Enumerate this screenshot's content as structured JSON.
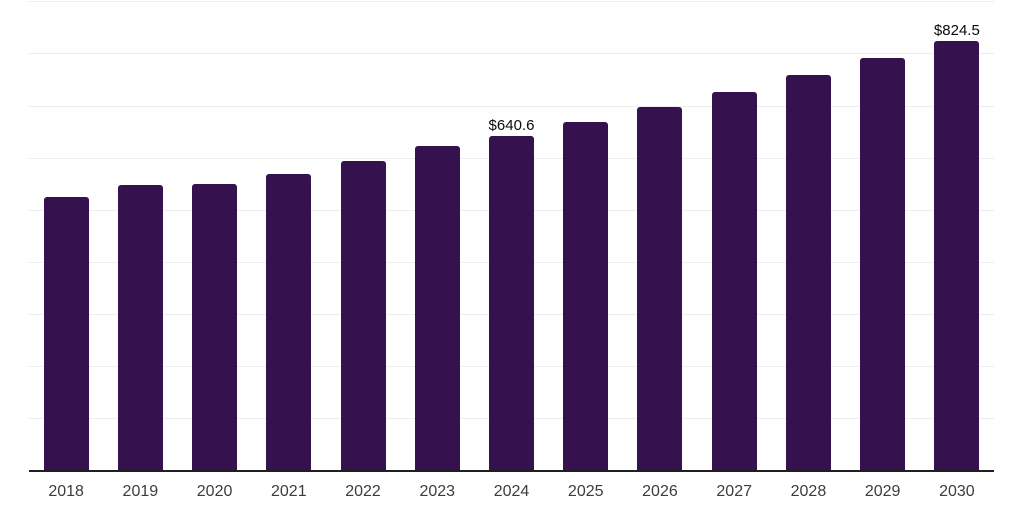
{
  "chart_data": {
    "type": "bar",
    "title": "",
    "xlabel": "",
    "ylabel": "",
    "categories": [
      "2018",
      "2019",
      "2020",
      "2021",
      "2022",
      "2023",
      "2024",
      "2025",
      "2026",
      "2027",
      "2028",
      "2029",
      "2030"
    ],
    "values": [
      524.9,
      546.7,
      548.7,
      568.9,
      593.3,
      621.5,
      640.6,
      668.1,
      696.8,
      726.8,
      758.0,
      790.5,
      824.5
    ],
    "data_labels": [
      {
        "index": 6,
        "text": "$640.6"
      },
      {
        "index": 12,
        "text": "$824.5"
      }
    ],
    "ylim": [
      0,
      900
    ],
    "grid": {
      "horizontal": true,
      "interval": 100,
      "color": "#ededed"
    },
    "legend": "none",
    "colors": {
      "bar": "#35114e",
      "axis": "#1f1f1f",
      "gridline": "#ededed",
      "tick_label": "#3c3c3c",
      "value_label": "#0a0a0a",
      "background": "#ffffff"
    }
  }
}
